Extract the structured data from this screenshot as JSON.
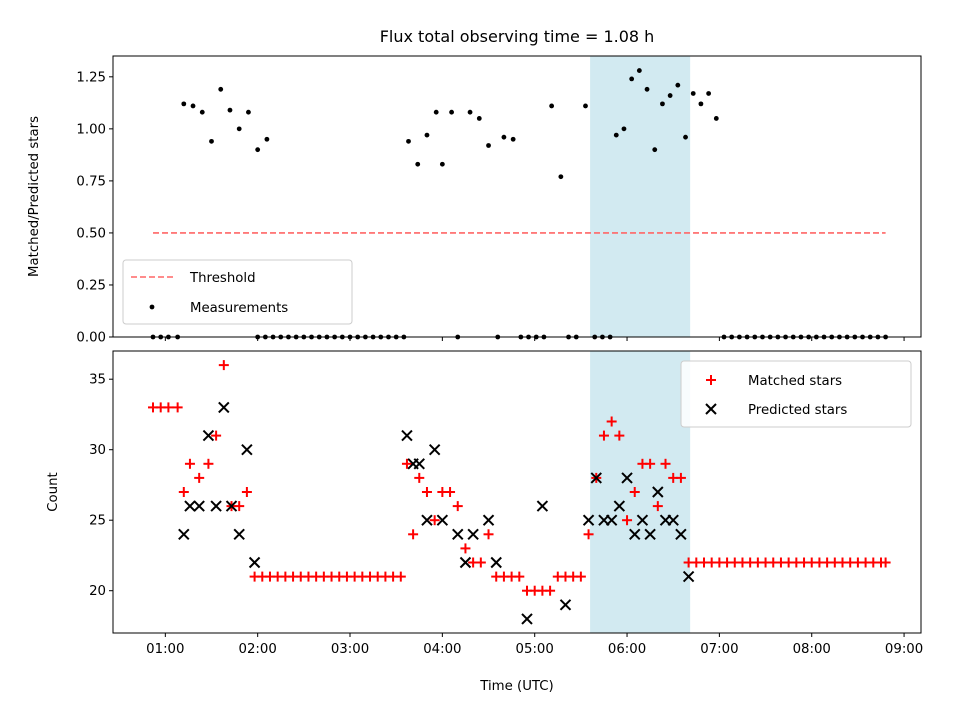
{
  "chart_data": [
    {
      "type": "scatter",
      "title": "Flux total observing time = 1.08 h",
      "xlabel": "",
      "ylabel": "Matched/Predicted stars",
      "ylim": [
        0,
        1.35
      ],
      "yticks": [
        "0.00",
        "0.25",
        "0.50",
        "0.75",
        "1.00",
        "1.25"
      ],
      "xlim": [
        "00:26",
        "09:11"
      ],
      "highlight_span": [
        "05:36",
        "06:41"
      ],
      "highlight_color": "#add8e6",
      "legend_position": "lower-left",
      "series": [
        {
          "name": "Threshold",
          "style": "dashed-line",
          "color": "#ff6666",
          "points": [
            [
              "00:52",
              0.5
            ],
            [
              "08:48",
              0.5
            ]
          ]
        },
        {
          "name": "Measurements",
          "style": "dot",
          "color": "#000000",
          "points": [
            [
              "00:52",
              0
            ],
            [
              "00:57",
              0
            ],
            [
              "01:02",
              0
            ],
            [
              "01:08",
              0
            ],
            [
              "01:12",
              1.12
            ],
            [
              "01:18",
              1.11
            ],
            [
              "01:24",
              1.08
            ],
            [
              "01:30",
              0.94
            ],
            [
              "01:36",
              1.19
            ],
            [
              "01:42",
              1.09
            ],
            [
              "01:48",
              1.0
            ],
            [
              "01:54",
              1.08
            ],
            [
              "02:00",
              0.9
            ],
            [
              "02:06",
              0.95
            ],
            [
              "02:00",
              0
            ],
            [
              "02:05",
              0
            ],
            [
              "02:10",
              0
            ],
            [
              "02:15",
              0
            ],
            [
              "02:20",
              0
            ],
            [
              "02:25",
              0
            ],
            [
              "02:30",
              0
            ],
            [
              "02:35",
              0
            ],
            [
              "02:40",
              0
            ],
            [
              "02:45",
              0
            ],
            [
              "02:50",
              0
            ],
            [
              "02:55",
              0
            ],
            [
              "03:00",
              0
            ],
            [
              "03:05",
              0
            ],
            [
              "03:10",
              0
            ],
            [
              "03:15",
              0
            ],
            [
              "03:20",
              0
            ],
            [
              "03:25",
              0
            ],
            [
              "03:30",
              0
            ],
            [
              "03:35",
              0
            ],
            [
              "03:38",
              0.94
            ],
            [
              "03:44",
              0.83
            ],
            [
              "03:50",
              0.97
            ],
            [
              "03:56",
              1.08
            ],
            [
              "04:00",
              0.83
            ],
            [
              "04:06",
              1.08
            ],
            [
              "04:10",
              0
            ],
            [
              "04:18",
              1.08
            ],
            [
              "04:24",
              1.05
            ],
            [
              "04:30",
              0.92
            ],
            [
              "04:36",
              0
            ],
            [
              "04:40",
              0.96
            ],
            [
              "04:46",
              0.95
            ],
            [
              "04:51",
              0
            ],
            [
              "04:56",
              0
            ],
            [
              "05:01",
              0
            ],
            [
              "05:06",
              0
            ],
            [
              "05:11",
              1.11
            ],
            [
              "05:17",
              0.77
            ],
            [
              "05:22",
              0
            ],
            [
              "05:27",
              0
            ],
            [
              "05:33",
              1.11
            ],
            [
              "05:39",
              0
            ],
            [
              "05:44",
              0
            ],
            [
              "05:49",
              0
            ],
            [
              "05:53",
              0.97
            ],
            [
              "05:58",
              1.0
            ],
            [
              "06:03",
              1.24
            ],
            [
              "06:08",
              1.28
            ],
            [
              "06:13",
              1.19
            ],
            [
              "06:18",
              0.9
            ],
            [
              "06:23",
              1.12
            ],
            [
              "06:28",
              1.16
            ],
            [
              "06:33",
              1.21
            ],
            [
              "06:38",
              0.96
            ],
            [
              "06:43",
              1.17
            ],
            [
              "06:48",
              1.12
            ],
            [
              "06:53",
              1.17
            ],
            [
              "06:58",
              1.05
            ],
            [
              "07:03",
              0
            ],
            [
              "07:08",
              0
            ],
            [
              "07:13",
              0
            ],
            [
              "07:18",
              0
            ],
            [
              "07:23",
              0
            ],
            [
              "07:28",
              0
            ],
            [
              "07:33",
              0
            ],
            [
              "07:38",
              0
            ],
            [
              "07:43",
              0
            ],
            [
              "07:48",
              0
            ],
            [
              "07:53",
              0
            ],
            [
              "07:58",
              0
            ],
            [
              "08:03",
              0
            ],
            [
              "08:08",
              0
            ],
            [
              "08:13",
              0
            ],
            [
              "08:18",
              0
            ],
            [
              "08:23",
              0
            ],
            [
              "08:28",
              0
            ],
            [
              "08:33",
              0
            ],
            [
              "08:38",
              0
            ],
            [
              "08:43",
              0
            ],
            [
              "08:48",
              0
            ]
          ]
        }
      ]
    },
    {
      "type": "scatter",
      "title": "",
      "xlabel": "Time (UTC)",
      "ylabel": "Count",
      "ylim": [
        17,
        37
      ],
      "yticks": [
        "20",
        "25",
        "30",
        "35"
      ],
      "xticks": [
        "01:00",
        "02:00",
        "03:00",
        "04:00",
        "05:00",
        "06:00",
        "07:00",
        "08:00",
        "09:00"
      ],
      "xlim": [
        "00:26",
        "09:11"
      ],
      "highlight_span": [
        "05:36",
        "06:41"
      ],
      "highlight_color": "#add8e6",
      "legend_position": "top-right",
      "series": [
        {
          "name": "Matched stars",
          "marker": "plus",
          "color": "#ff0000",
          "points": [
            [
              "00:52",
              33
            ],
            [
              "00:57",
              33
            ],
            [
              "01:02",
              33
            ],
            [
              "01:08",
              33
            ],
            [
              "01:12",
              27
            ],
            [
              "01:16",
              29
            ],
            [
              "01:22",
              28
            ],
            [
              "01:28",
              29
            ],
            [
              "01:33",
              31
            ],
            [
              "01:38",
              36
            ],
            [
              "01:43",
              26
            ],
            [
              "01:48",
              26
            ],
            [
              "01:53",
              27
            ],
            [
              "01:58",
              21
            ],
            [
              "02:03",
              21
            ],
            [
              "02:08",
              21
            ],
            [
              "02:13",
              21
            ],
            [
              "02:18",
              21
            ],
            [
              "02:23",
              21
            ],
            [
              "02:28",
              21
            ],
            [
              "02:33",
              21
            ],
            [
              "02:38",
              21
            ],
            [
              "02:43",
              21
            ],
            [
              "02:48",
              21
            ],
            [
              "02:53",
              21
            ],
            [
              "02:58",
              21
            ],
            [
              "03:03",
              21
            ],
            [
              "03:08",
              21
            ],
            [
              "03:13",
              21
            ],
            [
              "03:18",
              21
            ],
            [
              "03:23",
              21
            ],
            [
              "03:28",
              21
            ],
            [
              "03:33",
              21
            ],
            [
              "03:37",
              29
            ],
            [
              "03:41",
              24
            ],
            [
              "03:45",
              28
            ],
            [
              "03:50",
              27
            ],
            [
              "03:55",
              25
            ],
            [
              "04:00",
              27
            ],
            [
              "04:05",
              27
            ],
            [
              "04:10",
              26
            ],
            [
              "04:15",
              23
            ],
            [
              "04:20",
              22
            ],
            [
              "04:25",
              22
            ],
            [
              "04:30",
              24
            ],
            [
              "04:35",
              21
            ],
            [
              "04:40",
              21
            ],
            [
              "04:45",
              21
            ],
            [
              "04:50",
              21
            ],
            [
              "04:55",
              20
            ],
            [
              "05:00",
              20
            ],
            [
              "05:05",
              20
            ],
            [
              "05:10",
              20
            ],
            [
              "05:15",
              21
            ],
            [
              "05:20",
              21
            ],
            [
              "05:25",
              21
            ],
            [
              "05:30",
              21
            ],
            [
              "05:35",
              24
            ],
            [
              "05:40",
              28
            ],
            [
              "05:45",
              31
            ],
            [
              "05:50",
              32
            ],
            [
              "05:55",
              31
            ],
            [
              "06:00",
              25
            ],
            [
              "06:05",
              27
            ],
            [
              "06:10",
              29
            ],
            [
              "06:15",
              29
            ],
            [
              "06:20",
              26
            ],
            [
              "06:25",
              29
            ],
            [
              "06:30",
              28
            ],
            [
              "06:35",
              28
            ],
            [
              "06:40",
              22
            ],
            [
              "06:45",
              22
            ],
            [
              "06:50",
              22
            ],
            [
              "06:55",
              22
            ],
            [
              "07:00",
              22
            ],
            [
              "07:05",
              22
            ],
            [
              "07:10",
              22
            ],
            [
              "07:15",
              22
            ],
            [
              "07:20",
              22
            ],
            [
              "07:25",
              22
            ],
            [
              "07:30",
              22
            ],
            [
              "07:35",
              22
            ],
            [
              "07:40",
              22
            ],
            [
              "07:45",
              22
            ],
            [
              "07:50",
              22
            ],
            [
              "07:55",
              22
            ],
            [
              "08:00",
              22
            ],
            [
              "08:05",
              22
            ],
            [
              "08:10",
              22
            ],
            [
              "08:15",
              22
            ],
            [
              "08:20",
              22
            ],
            [
              "08:25",
              22
            ],
            [
              "08:30",
              22
            ],
            [
              "08:35",
              22
            ],
            [
              "08:40",
              22
            ],
            [
              "08:45",
              22
            ],
            [
              "08:48",
              22
            ]
          ]
        },
        {
          "name": "Predicted stars",
          "marker": "x",
          "color": "#000000",
          "points": [
            [
              "01:12",
              24
            ],
            [
              "01:16",
              26
            ],
            [
              "01:22",
              26
            ],
            [
              "01:28",
              31
            ],
            [
              "01:33",
              26
            ],
            [
              "01:38",
              33
            ],
            [
              "01:43",
              26
            ],
            [
              "01:48",
              24
            ],
            [
              "01:53",
              30
            ],
            [
              "01:58",
              22
            ],
            [
              "03:37",
              31
            ],
            [
              "03:41",
              29
            ],
            [
              "03:45",
              29
            ],
            [
              "03:50",
              25
            ],
            [
              "03:55",
              30
            ],
            [
              "04:00",
              25
            ],
            [
              "04:10",
              24
            ],
            [
              "04:15",
              22
            ],
            [
              "04:20",
              24
            ],
            [
              "04:30",
              25
            ],
            [
              "04:35",
              22
            ],
            [
              "04:55",
              18
            ],
            [
              "05:05",
              26
            ],
            [
              "05:20",
              19
            ],
            [
              "05:35",
              25
            ],
            [
              "05:40",
              28
            ],
            [
              "05:45",
              25
            ],
            [
              "05:50",
              25
            ],
            [
              "05:55",
              26
            ],
            [
              "06:00",
              28
            ],
            [
              "06:05",
              24
            ],
            [
              "06:10",
              25
            ],
            [
              "06:15",
              24
            ],
            [
              "06:20",
              27
            ],
            [
              "06:25",
              25
            ],
            [
              "06:30",
              25
            ],
            [
              "06:35",
              24
            ],
            [
              "06:40",
              21
            ]
          ]
        }
      ]
    }
  ]
}
